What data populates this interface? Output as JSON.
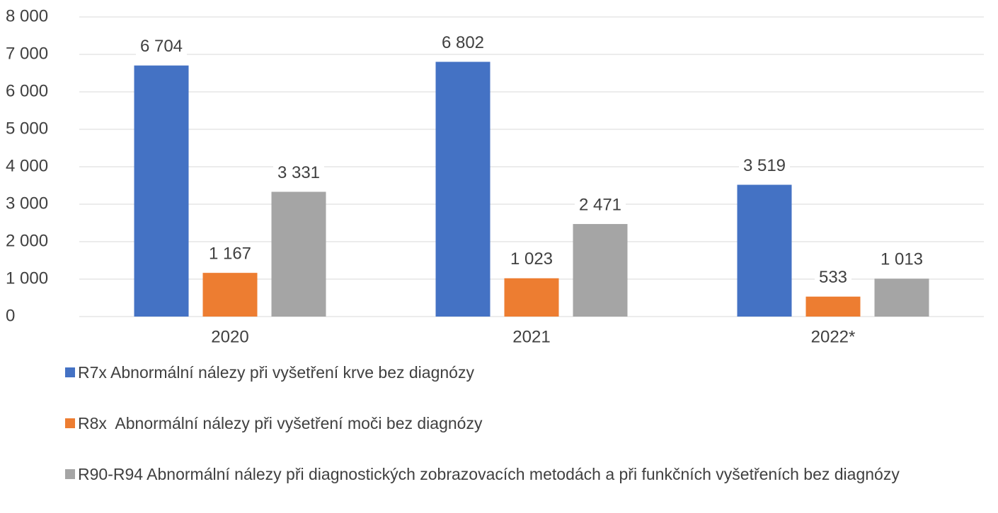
{
  "chart_data": {
    "type": "bar",
    "categories": [
      "2020",
      "2021",
      "2022*"
    ],
    "series": [
      {
        "name": "R7x Abnormální nálezy při vyšetření krve bez diagnózy",
        "color": "#4472c4",
        "values": [
          6704,
          6802,
          3519
        ],
        "value_labels": [
          "6 704",
          "6 802",
          "3 519"
        ]
      },
      {
        "name": "R8x  Abnormální nálezy při vyšetření moči bez diagnózy",
        "color": "#ed7d31",
        "values": [
          1167,
          1023,
          533
        ],
        "value_labels": [
          "1 167",
          "1 023",
          "533"
        ]
      },
      {
        "name": "R90-R94 Abnormální nálezy při diagnostických zobrazovacích metodách a při funkčních vyšetřeních bez diagnózy",
        "color": "#a5a5a5",
        "values": [
          3331,
          2471,
          1013
        ],
        "value_labels": [
          "3 331",
          "2 471",
          "1 013"
        ]
      }
    ],
    "ylim": [
      0,
      8000
    ],
    "yticks": [
      0,
      {
        "value": 1000,
        "label": "1 000"
      },
      {
        "value": 2000,
        "label": "2 000"
      },
      {
        "value": 3000,
        "label": "3 000"
      },
      {
        "value": 4000,
        "label": "4 000"
      },
      {
        "value": 5000,
        "label": "5 000"
      },
      {
        "value": 6000,
        "label": "6 000"
      },
      {
        "value": 7000,
        "label": "7 000"
      },
      {
        "value": 8000,
        "label": "8 000"
      }
    ],
    "grid": true
  }
}
